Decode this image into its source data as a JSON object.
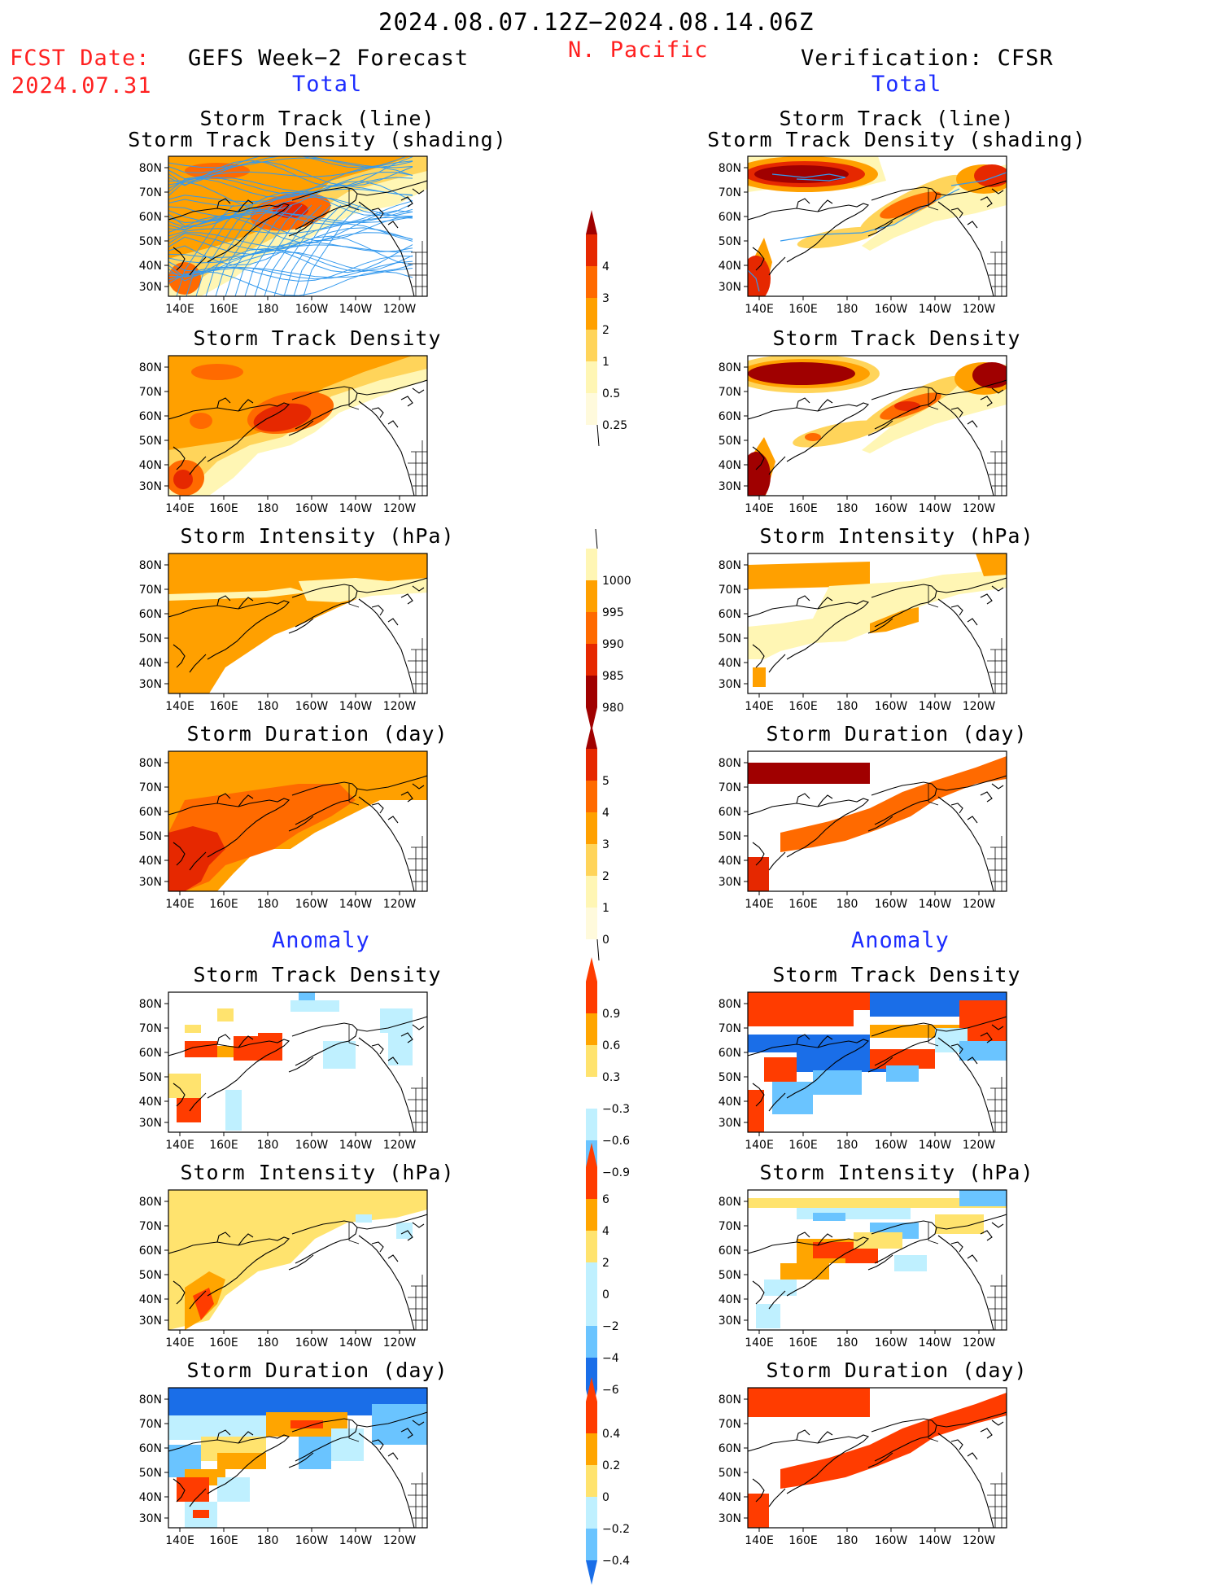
{
  "header": {
    "date_range": "2024.08.07.12Z−2024.08.14.06Z",
    "region": "N. Pacific",
    "fcst_label": "FCST Date:",
    "fcst_date": "2024.07.31",
    "left_title": "GEFS Week−2 Forecast",
    "right_title": "Verification: CFSR",
    "left_total": "Total",
    "right_total": "Total",
    "left_anomaly": "Anomaly",
    "right_anomaly": "Anomaly"
  },
  "panel_titles": {
    "track_line": "Storm Track (line)",
    "track_shading": "Storm Track Density (shading)",
    "density": "Storm Track Density",
    "intensity": "Storm Intensity (hPa)",
    "duration": "Storm Duration (day)"
  },
  "axes": {
    "lat_labels": [
      "80N",
      "70N",
      "60N",
      "50N",
      "40N",
      "30N"
    ],
    "lon_labels": [
      "140E",
      "160E",
      "180",
      "160W",
      "140W",
      "120W"
    ]
  },
  "colorbars": {
    "density_total": [
      "4",
      "3",
      "2",
      "1",
      "0.5",
      "0.25"
    ],
    "intensity_total": [
      "1000",
      "995",
      "990",
      "985",
      "980"
    ],
    "duration_total": [
      "5",
      "4",
      "3",
      "2",
      "1",
      "0"
    ],
    "density_anom": [
      "0.9",
      "0.6",
      "0.3",
      "−0.3",
      "−0.6",
      "−0.9"
    ],
    "intensity_anom": [
      "6",
      "4",
      "2",
      "0",
      "−2",
      "−4",
      "−6"
    ],
    "duration_anom": [
      "0.4",
      "0.2",
      "0",
      "−0.2",
      "−0.4"
    ]
  },
  "colors": {
    "c1": "#fff6b4",
    "c2": "#ffd45a",
    "c3": "#ffa000",
    "c4": "#ff6a00",
    "c5": "#e62800",
    "c6": "#a00000",
    "a_pos1": "#ffe36e",
    "a_pos2": "#ffa500",
    "a_pos3": "#ff3c00",
    "a_neg1": "#bff0ff",
    "a_neg2": "#6ac4ff",
    "a_neg3": "#1a6ee8",
    "track_line": "#3399ee"
  }
}
